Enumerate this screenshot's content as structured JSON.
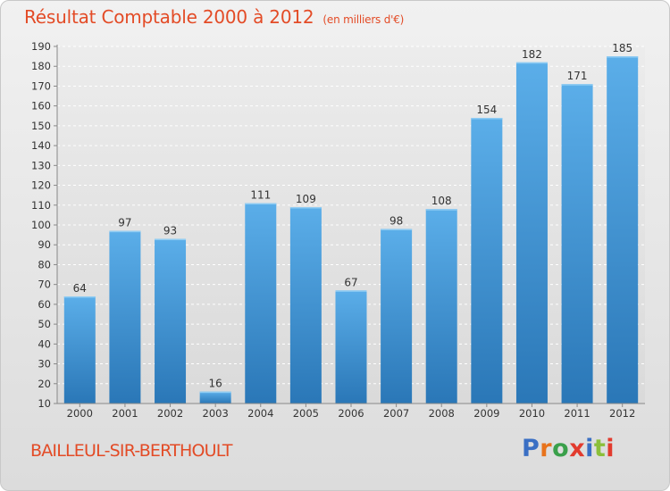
{
  "title": "Résultat Comptable 2000 à 2012",
  "subtitle": "(en milliers d'€)",
  "commune": "BAILLEUL-SIR-BERTHOULT",
  "brand": {
    "letters": [
      "P",
      "r",
      "o",
      "x",
      "i",
      "t",
      "i"
    ],
    "colors": [
      "#3a6fc4",
      "#e8731c",
      "#3aa04b",
      "#e23b2e",
      "#3a6fc4",
      "#8bbf3a",
      "#e23b2e"
    ]
  },
  "colors": {
    "bar_top": "#5baee9",
    "bar_bottom": "#2a77b7",
    "accent": "#e34b26"
  },
  "chart_data": {
    "type": "bar",
    "categories": [
      "2000",
      "2001",
      "2002",
      "2003",
      "2004",
      "2005",
      "2006",
      "2007",
      "2008",
      "2009",
      "2010",
      "2011",
      "2012"
    ],
    "values": [
      64,
      97,
      93,
      16,
      111,
      109,
      67,
      98,
      108,
      154,
      182,
      171,
      185
    ],
    "title": "Résultat Comptable 2000 à 2012",
    "ylim": [
      10,
      190
    ],
    "yticks": [
      10,
      20,
      30,
      40,
      50,
      60,
      70,
      80,
      90,
      100,
      110,
      120,
      130,
      140,
      150,
      160,
      170,
      180,
      190
    ],
    "grid": true
  }
}
